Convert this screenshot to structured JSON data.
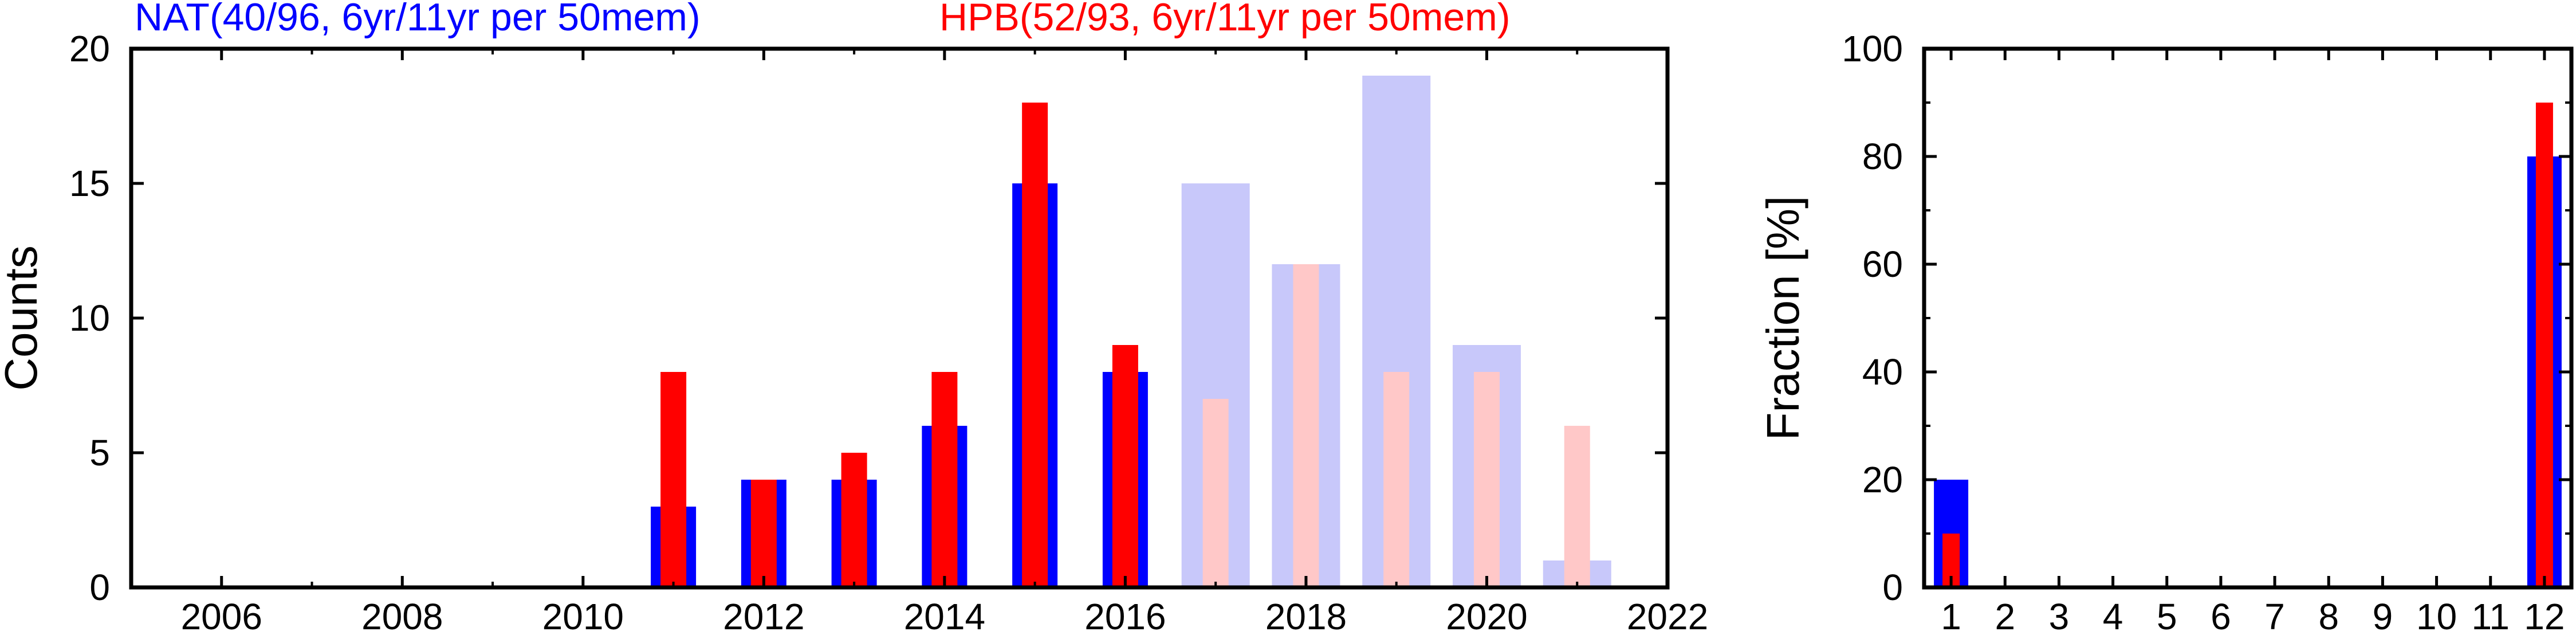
{
  "header": {
    "nat_label": "NAT(40/96, 6yr/11yr per 50mem)",
    "hpb_label": "HPB(52/93, 6yr/11yr per 50mem)"
  },
  "colors": {
    "nat": "#0000ff",
    "hpb": "#ff0000",
    "nat_light": "#c8c8fa",
    "hpb_light": "#ffc8c8",
    "axis": "#000000"
  },
  "chart_data": [
    {
      "type": "bar",
      "title": "",
      "xlabel": "",
      "ylabel": "Counts",
      "xlim": [
        2005,
        2022
      ],
      "ylim": [
        0,
        20
      ],
      "x_ticks": [
        2006,
        2008,
        2010,
        2012,
        2014,
        2016,
        2018,
        2020,
        2022
      ],
      "y_ticks": [
        0,
        5,
        10,
        15,
        20
      ],
      "grid": false,
      "legend": "top (colored header text)",
      "series": [
        {
          "name": "NAT(40/96, 6yr/11yr per 50mem)",
          "x": [
            2011,
            2012,
            2013,
            2014,
            2015,
            2016
          ],
          "values": [
            3,
            4,
            4,
            6,
            15,
            8
          ]
        },
        {
          "name": "HPB(52/93, 6yr/11yr per 50mem)",
          "x": [
            2011,
            2012,
            2013,
            2014,
            2015,
            2016
          ],
          "values": [
            8,
            4,
            5,
            8,
            18,
            9
          ]
        },
        {
          "name": "",
          "x": [
            2017,
            2018,
            2019,
            2020,
            2021
          ],
          "values": [
            15,
            12,
            19,
            9,
            1
          ]
        },
        {
          "name": "",
          "x": [
            2017,
            2018,
            2019,
            2020,
            2021
          ],
          "values": [
            7,
            12,
            8,
            8,
            6
          ]
        }
      ]
    },
    {
      "type": "bar",
      "title": "",
      "xlabel": "",
      "ylabel": "Fraction [%]",
      "xlim": [
        0.5,
        12.5
      ],
      "ylim": [
        0,
        100
      ],
      "categories": [
        "1",
        "2",
        "3",
        "4",
        "5",
        "6",
        "7",
        "8",
        "9",
        "10",
        "11",
        "12"
      ],
      "y_ticks": [
        0,
        20,
        40,
        60,
        80,
        100
      ],
      "grid": false,
      "series": [
        {
          "name": "NAT(40/96, 6yr/11yr per 50mem)",
          "values": [
            20,
            0,
            0,
            0,
            0,
            0,
            0,
            0,
            0,
            0,
            0,
            80
          ]
        },
        {
          "name": "HPB(52/93, 6yr/11yr per 50mem)",
          "values": [
            10,
            0,
            0,
            0,
            0,
            0,
            0,
            0,
            0,
            0,
            0,
            90
          ]
        }
      ]
    }
  ]
}
